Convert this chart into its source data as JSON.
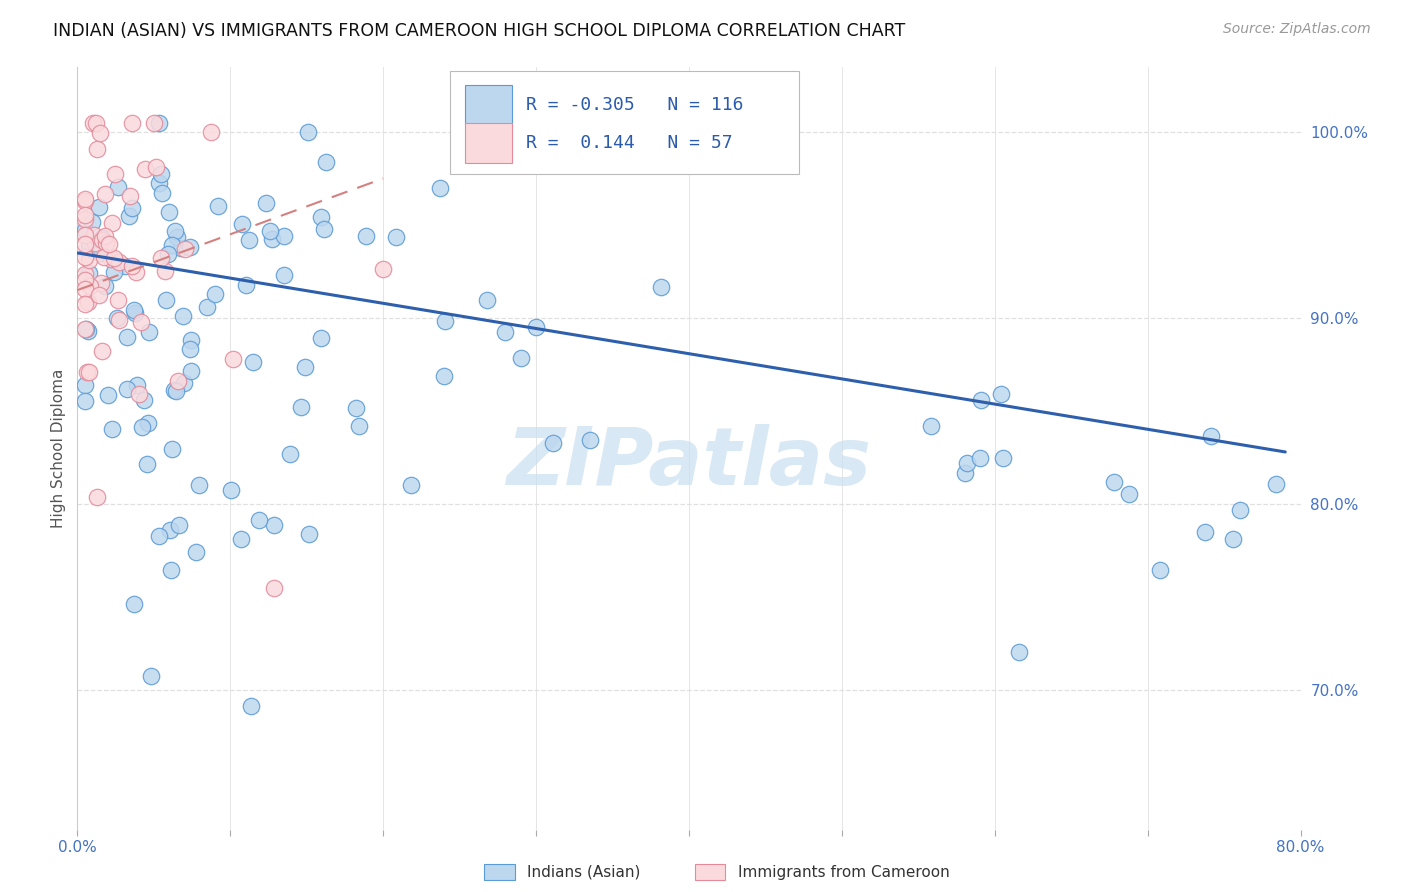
{
  "title": "INDIAN (ASIAN) VS IMMIGRANTS FROM CAMEROON HIGH SCHOOL DIPLOMA CORRELATION CHART",
  "source": "Source: ZipAtlas.com",
  "ylabel": "High School Diploma",
  "r1": "-0.305",
  "n1": "116",
  "r2": "0.144",
  "n2": "57",
  "color_blue_face": "#BDD7EE",
  "color_blue_edge": "#5B9BD5",
  "color_pink_face": "#FADADD",
  "color_pink_edge": "#E48A9A",
  "color_line_blue": "#2E5FAC",
  "color_line_pink": "#D48080",
  "color_text_axis": "#4472C4",
  "color_watermark": "#C8DFF0",
  "color_grid": "#E0E0E0",
  "watermark": "ZIPatlas",
  "legend_label1": "Indians (Asian)",
  "legend_label2": "Immigrants from Cameroon",
  "xlim": [
    0.0,
    0.8
  ],
  "ylim": [
    0.625,
    1.035
  ],
  "xticks": [
    0.0,
    0.1,
    0.2,
    0.3,
    0.4,
    0.5,
    0.6,
    0.7,
    0.8
  ],
  "yticks": [
    0.7,
    0.8,
    0.9,
    1.0
  ],
  "ytick_labels": [
    "70.0%",
    "80.0%",
    "90.0%",
    "100.0%"
  ],
  "blue_line_x": [
    0.0,
    0.79
  ],
  "blue_line_y": [
    0.935,
    0.828
  ],
  "pink_line_x": [
    0.0,
    0.2
  ],
  "pink_line_y": [
    0.915,
    0.975
  ]
}
